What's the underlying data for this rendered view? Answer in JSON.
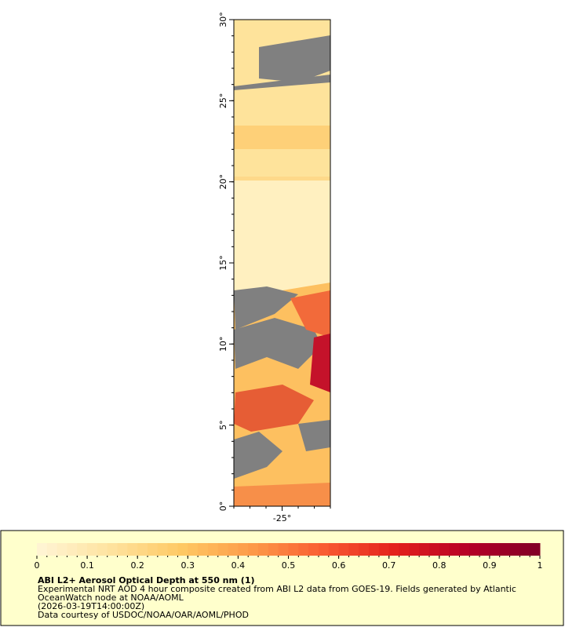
{
  "map": {
    "lat_range": [
      0,
      30
    ],
    "lon_range": [
      -28,
      -22
    ],
    "lat_ticks": [
      {
        "value": 0,
        "label": "0°"
      },
      {
        "value": 5,
        "label": "5°"
      },
      {
        "value": 10,
        "label": "10°"
      },
      {
        "value": 15,
        "label": "15°"
      },
      {
        "value": 20,
        "label": "20°"
      },
      {
        "value": 25,
        "label": "25°"
      },
      {
        "value": 30,
        "label": "30°"
      }
    ],
    "lon_ticks": [
      {
        "value": -25,
        "label": "-25°"
      }
    ]
  },
  "colorbar": {
    "range": [
      0,
      1
    ],
    "ticks": [
      0,
      0.1,
      0.2,
      0.3,
      0.4,
      0.5,
      0.6,
      0.7,
      0.8,
      0.9,
      1
    ],
    "colors": [
      "#fff5d6",
      "#fee3a0",
      "#fec964",
      "#fd9a48",
      "#f95b32",
      "#e3201c",
      "#b60026",
      "#800026"
    ]
  },
  "legend": {
    "title": "ABI L2+ Aerosol Optical Depth at 550 nm (1)",
    "lines": [
      "Experimental NRT AOD 4 hour composite created from ABI L2 data from GOES-19. Fields generated by Atlantic",
      "OceanWatch node at NOAA/AOML",
      "(2026-03-19T14:00:00Z)",
      "Data courtesy of USDOC/NOAA/OAR/AOML/PHOD"
    ]
  }
}
